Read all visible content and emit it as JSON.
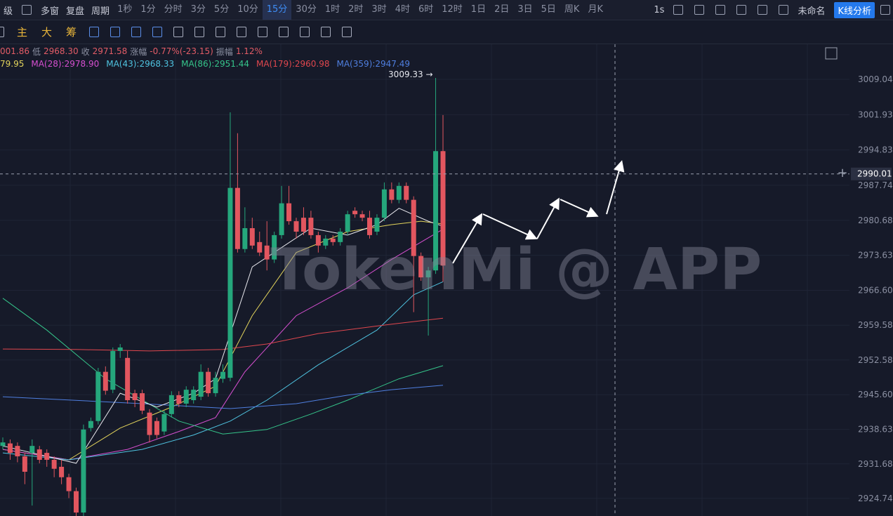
{
  "toolbar": {
    "left": [
      "级",
      "多窗",
      "复盘",
      "周期"
    ],
    "periods": [
      "1秒",
      "1分",
      "分时",
      "3分",
      "5分",
      "10分",
      "15分",
      "30分",
      "1时",
      "2时",
      "3时",
      "4时",
      "6时",
      "12时",
      "1日",
      "2日",
      "3日",
      "5日",
      "周K",
      "月K"
    ],
    "active_period": 6,
    "speed": "1s",
    "doc_name": "未命名",
    "analysis_button": "K线分析"
  },
  "indicators": [
    "主",
    "大",
    "筹"
  ],
  "quote": [
    "001.86",
    "低",
    "2968.30",
    "收",
    "2971.58",
    "涨幅",
    "-0.77%(-23.15)",
    "振幅",
    "1.12%"
  ],
  "chart_data": {
    "type": "candlestick",
    "ylim": [
      2921.2,
      3016.1
    ],
    "yticks": [
      3009.04,
      3001.93,
      2994.83,
      2987.74,
      2980.68,
      2973.63,
      {
        "value": 2966.6,
        "label": "2966.60"
      },
      2959.58,
      2952.58,
      {
        "value": 2945.6,
        "label": "2945.60"
      },
      2938.63,
      2931.68,
      2924.74
    ],
    "grid": true,
    "up_color": "#25a77c",
    "down_color": "#e2565f",
    "open": [
      2935.3,
      2935.8,
      2935.3,
      2933.2,
      2933.9,
      2934.6,
      2933.9,
      2932.5,
      2931.1,
      2929.0,
      2926.2,
      2921.9,
      2938.9,
      2940.3,
      2950.2,
      2946.6,
      2954.4,
      2953.0,
      2945.9,
      2945.9,
      2942.0,
      2940.3,
      2938.2,
      2941.7,
      2945.5,
      2943.8,
      2944.5,
      2945.2,
      2950.2,
      2945.9,
      2948.8,
      2949.0,
      2987.2,
      2974.9,
      2979.1,
      2976.3,
      2975.6,
      2972.8,
      2977.7,
      2984.1,
      2980.5,
      2981.2,
      2981.2,
      2977.7,
      2975.6,
      2977.0,
      2976.3,
      2978.4,
      2982.6,
      2981.9,
      2981.2,
      2978.4,
      2981.2,
      2986.9,
      2984.8,
      2987.6,
      2984.8,
      2973.5,
      2969.2,
      2970.6,
      2994.6
    ],
    "high": [
      2937.0,
      2936.6,
      2936.0,
      2933.9,
      2936.6,
      2935.3,
      2934.6,
      2933.2,
      2932.5,
      2929.7,
      2926.9,
      2939.6,
      2941.0,
      2951.0,
      2951.3,
      2955.1,
      2955.8,
      2954.4,
      2946.6,
      2946.6,
      2942.7,
      2941.0,
      2942.4,
      2946.3,
      2946.3,
      2947.3,
      2947.3,
      2951.7,
      2951.0,
      2950.2,
      2951.7,
      3002.4,
      2998.2,
      2983.3,
      2981.2,
      2978.4,
      2980.5,
      2978.4,
      2987.6,
      2987.6,
      2981.2,
      2983.3,
      2982.6,
      2978.4,
      2977.7,
      2977.7,
      2979.1,
      2982.6,
      2983.3,
      2982.6,
      2982.6,
      2981.9,
      2988.3,
      2988.3,
      2988.3,
      2988.3,
      2985.5,
      2974.2,
      2971.3,
      3009.33,
      3001.86
    ],
    "low": [
      2934.6,
      2932.5,
      2932.0,
      2927.6,
      2923.3,
      2931.8,
      2931.1,
      2929.0,
      2927.6,
      2924.8,
      2921.2,
      2921.2,
      2938.2,
      2939.6,
      2945.6,
      2945.9,
      2953.0,
      2943.8,
      2943.1,
      2941.7,
      2936.0,
      2936.8,
      2937.5,
      2941.0,
      2943.1,
      2943.1,
      2943.8,
      2944.5,
      2945.2,
      2945.2,
      2948.0,
      2948.3,
      2974.2,
      2974.2,
      2974.9,
      2973.5,
      2970.6,
      2972.1,
      2977.0,
      2979.8,
      2977.0,
      2977.7,
      2977.0,
      2974.2,
      2974.9,
      2975.6,
      2975.6,
      2977.7,
      2981.2,
      2980.5,
      2977.0,
      2977.7,
      2980.5,
      2984.1,
      2984.1,
      2984.1,
      2962.2,
      2968.5,
      2957.5,
      2969.9,
      2968.3
    ],
    "close": [
      2936.0,
      2933.9,
      2933.2,
      2930.1,
      2935.3,
      2932.5,
      2932.5,
      2930.7,
      2929.0,
      2926.2,
      2921.9,
      2938.6,
      2940.3,
      2950.2,
      2946.4,
      2954.4,
      2955.1,
      2944.5,
      2944.5,
      2942.4,
      2937.5,
      2937.5,
      2941.7,
      2945.5,
      2943.8,
      2946.6,
      2946.6,
      2950.2,
      2945.9,
      2949.0,
      2950.2,
      2987.2,
      2974.9,
      2979.1,
      2975.6,
      2974.2,
      2972.8,
      2977.7,
      2984.1,
      2980.5,
      2978.4,
      2978.4,
      2977.7,
      2975.6,
      2977.0,
      2976.3,
      2978.4,
      2981.9,
      2981.9,
      2981.2,
      2977.7,
      2981.2,
      2986.9,
      2984.8,
      2987.6,
      2984.8,
      2973.5,
      2969.2,
      2970.6,
      2994.6,
      2971.58
    ],
    "annotation": "3009.33 →",
    "crosshair": {
      "value": 2990.01
    },
    "watermark": "TokenMi @ APP",
    "series": [
      {
        "name": "79.95",
        "color": "#e3d45c",
        "x": [
          0,
          9,
          16,
          23,
          29,
          34,
          40,
          47,
          53,
          57,
          60
        ],
        "values": [
          2934.6,
          2932.5,
          2938.9,
          2943.1,
          2947.3,
          2961.5,
          2974.2,
          2978.4,
          2979.8,
          2980.5,
          2979.95
        ]
      },
      {
        "name": "MA(28):2978.90",
        "color": "#d64fd0",
        "x": [
          0,
          9,
          17,
          24,
          29,
          33,
          40,
          47,
          53,
          60
        ],
        "values": [
          2934.6,
          2932.5,
          2934.6,
          2938.2,
          2941.0,
          2950.2,
          2961.5,
          2967.1,
          2972.8,
          2978.9
        ]
      },
      {
        "name": "MA(43):2968.33",
        "color": "#4fc3e0",
        "x": [
          0,
          9,
          19,
          26,
          31,
          36,
          43,
          51,
          56,
          60
        ],
        "values": [
          2933.9,
          2932.5,
          2934.6,
          2937.5,
          2940.3,
          2944.5,
          2951.6,
          2958.6,
          2965.7,
          2968.33
        ]
      },
      {
        "name": "MA(86):2951.44",
        "color": "#35c48a",
        "x": [
          0,
          6,
          14,
          24,
          30,
          36,
          42,
          47,
          54,
          60
        ],
        "values": [
          2965.0,
          2958.6,
          2948.8,
          2940.3,
          2937.7,
          2938.6,
          2941.7,
          2944.5,
          2948.8,
          2951.44
        ]
      },
      {
        "name": "MA(179):2960.98",
        "color": "#e0474e",
        "x": [
          0,
          10,
          20,
          30,
          36,
          43,
          53,
          60
        ],
        "values": [
          2954.8,
          2954.7,
          2954.4,
          2954.7,
          2955.8,
          2957.9,
          2959.8,
          2960.98
        ]
      },
      {
        "name": "MA(359):2947.49",
        "color": "#4f7fe0",
        "x": [
          0,
          19,
          31,
          40,
          47,
          53,
          60
        ],
        "values": [
          2945.2,
          2943.8,
          2942.8,
          2943.8,
          2945.5,
          2946.6,
          2947.49
        ]
      },
      {
        "color": "#e8e8ee",
        "x": [
          0,
          10,
          16,
          21,
          26,
          29,
          34,
          42,
          47,
          51,
          54,
          58,
          60
        ],
        "values": [
          2935.3,
          2931.8,
          2945.9,
          2943.1,
          2945.9,
          2948.8,
          2971.3,
          2979.1,
          2977.7,
          2979.8,
          2983.1,
          2980.5,
          2979.5
        ]
      }
    ]
  }
}
